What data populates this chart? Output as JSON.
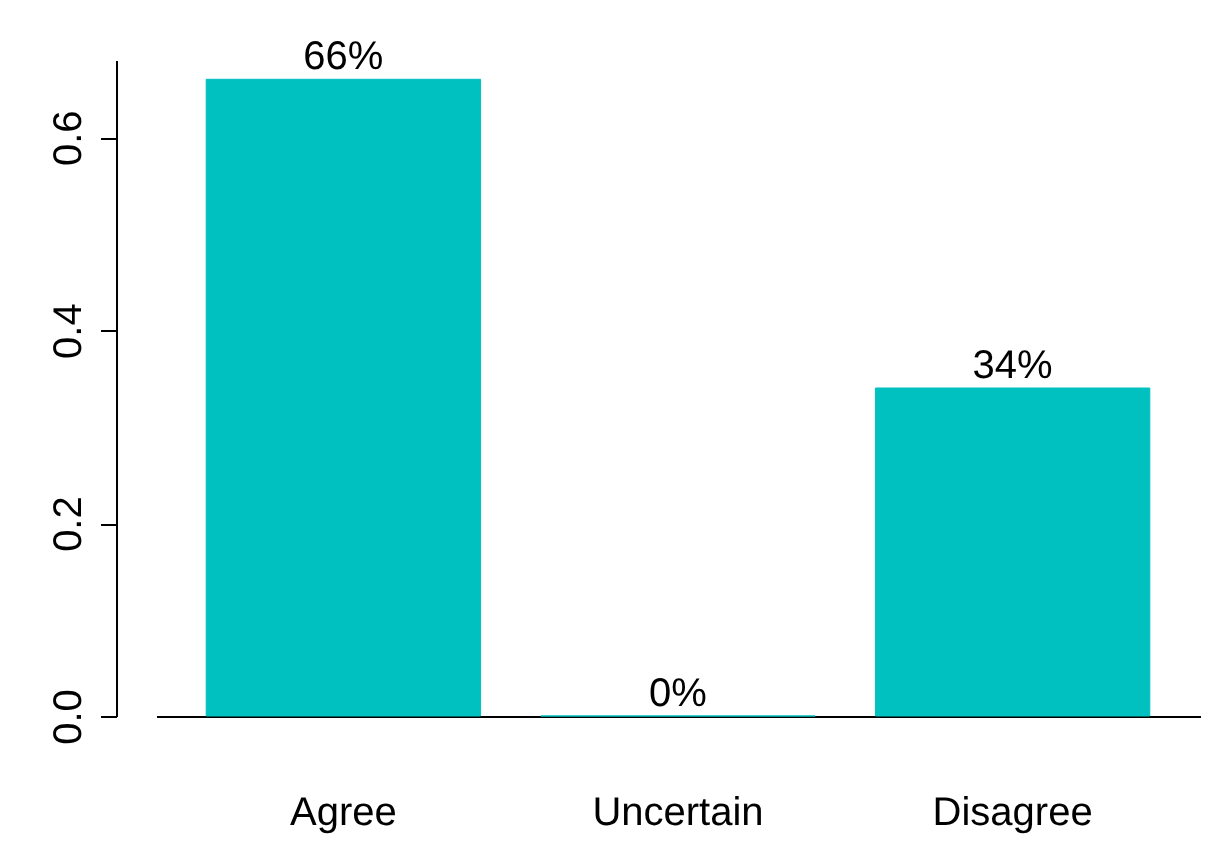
{
  "chart_data": {
    "type": "bar",
    "categories": [
      "Agree",
      "Uncertain",
      "Disagree"
    ],
    "values": [
      0.66,
      0,
      0.34
    ],
    "value_labels": [
      "66%",
      "0%",
      "34%"
    ],
    "color": "#00c0c0",
    "ylim": [
      0,
      0.68
    ],
    "yticks": [
      {
        "value": 0,
        "label": "0.0"
      },
      0.2,
      0.4,
      0.6
    ],
    "grid": false
  }
}
